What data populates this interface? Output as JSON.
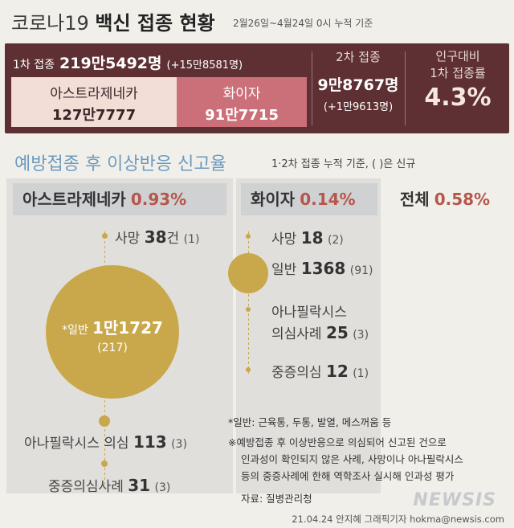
{
  "header": {
    "title_plain": "코로나19",
    "title_bold": "백신 접종 현황",
    "date_range": "2월26일~4월24일 0시 누적 기준"
  },
  "summary": {
    "first_dose_label": "1차 접종",
    "first_dose_total": "219만5492명",
    "first_dose_increase": "(+15만8581명)",
    "az_label": "아스트라제네카",
    "az_value": "127만7777",
    "pfizer_label": "화이자",
    "pfizer_value": "91만7715",
    "second_dose_label": "2차 접종",
    "second_dose_total": "9만8767명",
    "second_dose_increase": "(+1만9613명)",
    "rate_label_1": "인구대비",
    "rate_label_2": "1차 접종률",
    "rate_value": "4.3%"
  },
  "section": {
    "title": "예방접종 후 이상반응 신고율",
    "subtitle": "1·2차 접종 누적 기준, ( )은 신규"
  },
  "columns": {
    "az": {
      "name": "아스트라제네카",
      "rate": "0.93%"
    },
    "pfizer": {
      "name": "화이자",
      "rate": "0.14%"
    },
    "total": {
      "name": "전체",
      "rate": "0.58%"
    }
  },
  "az_items": {
    "death": {
      "label": "사망",
      "value": "38",
      "unit": "건",
      "new": "(1)"
    },
    "general": {
      "label": "*일반",
      "value": "1만1727",
      "new": "(217)"
    },
    "anaphylaxis": {
      "label": "아나필락시스 의심",
      "value": "113",
      "new": "(3)"
    },
    "serious": {
      "label": "중증의심사례",
      "value": "31",
      "new": "(3)"
    }
  },
  "pfizer_items": {
    "death": {
      "label": "사망",
      "value": "18",
      "new": "(2)"
    },
    "general": {
      "label": "일반",
      "value": "1368",
      "new": "(91)"
    },
    "anaphylaxis_1": "아나필락시스",
    "anaphylaxis_2": "의심사례",
    "anaphylaxis_value": "25",
    "anaphylaxis_new": "(3)",
    "serious": {
      "label": "중증의심",
      "value": "12",
      "new": "(1)"
    }
  },
  "footnotes": {
    "line1": "*일반:  근육통, 두통, 발열, 메스꺼움 등",
    "line2": "※예방접종 후 이상반응으로 의심되어 신고된 건으로",
    "line3": "인과성이 확인되지 않은 사례, 사망이나 아나필락시스",
    "line4": "등의 중증사례에 한해 역학조사 실시해 인과성 평가",
    "source": "자료:  질병관리청"
  },
  "credit": "21.04.24 안지혜 그래픽기자 hokma@newsis.com",
  "logo": "NEWSIS",
  "colors": {
    "panel": "#5e2f33",
    "az": "#f2ddd7",
    "pfizer": "#cb6f79",
    "bubble": "#c9a74b",
    "accent_blue": "#6d9bc1",
    "rate_red": "#b5574b"
  },
  "chart_data": {
    "type": "bubble",
    "unit": "건",
    "series": [
      {
        "name": "아스트라제네카",
        "rate_pct": 0.93,
        "categories": [
          "사망",
          "일반",
          "아나필락시스 의심",
          "중증의심사례"
        ],
        "values": [
          38,
          11727,
          113,
          31
        ],
        "new": [
          1,
          217,
          3,
          3
        ]
      },
      {
        "name": "화이자",
        "rate_pct": 0.14,
        "categories": [
          "사망",
          "일반",
          "아나필락시스 의심사례",
          "중증의심"
        ],
        "values": [
          18,
          1368,
          25,
          12
        ],
        "new": [
          2,
          91,
          3,
          1
        ]
      }
    ],
    "total_rate_pct": 0.58
  }
}
